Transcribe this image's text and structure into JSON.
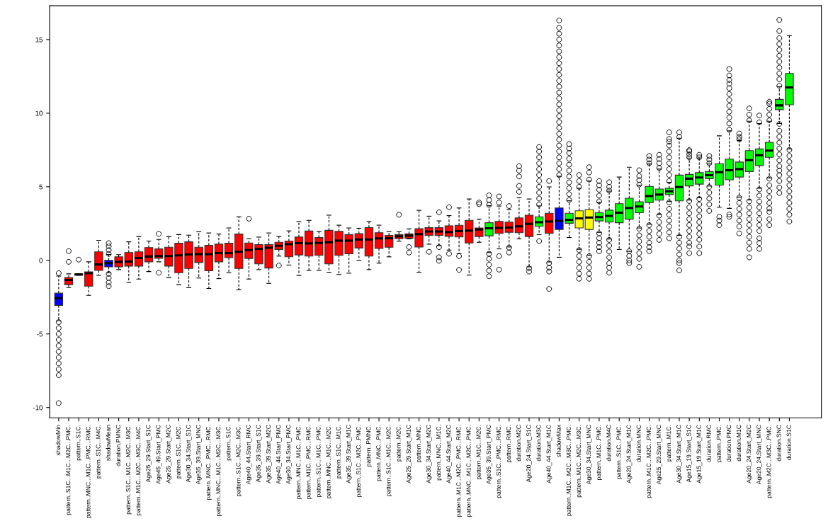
{
  "chart_data": {
    "type": "box",
    "categories": [
      "shadowMin",
      "pattern..S1C...M1C...M2C...PMC.",
      "pattern..S1C.",
      "pattern..MNC...M1C...PMC...RMC.",
      "pattern..S1C...M4C.",
      "shadowMean",
      "duration.PMNC",
      "pattern..S1C...M1C...M2C...M3C.",
      "pattern..M1C...M2C...M3C...M4C.",
      "Age25_29.Start_S1C",
      "Age45_49.Start_PMC",
      "Age25_29.Start_M2C",
      "pattern..S1C...M2C.",
      "Age30_34.Start_S1C",
      "Age35_39.Start_MNC",
      "pattern..MNC...PMC...RMC.",
      "pattern..MNC...M1C...M2C...M3C.",
      "pattern..S1C.",
      "pattern..S1C...M2C...M3C.",
      "Age40_44.Start_RMC",
      "Age35_39.Start_S1C",
      "Age35_39.Start_M2C",
      "Age40_44.Start_PMC",
      "Age30_34.Start_PMC",
      "pattern..MNC...M1C...PMC.",
      "pattern..M1C...PMC...RMC.",
      "pattern..S1C...M1C...PMC.",
      "pattern..MNC...M1C...M2C.",
      "pattern..S1C...M1C.",
      "Age35_39.Start_M1C",
      "pattern..S1C...M2C...PMC.",
      "pattern..PMNC.",
      "pattern..MNC...PMC.",
      "pattern..S1C...M1C...M2C.",
      "pattern..M2C.",
      "Age25_29.Start_M1C",
      "pattern..MNC.",
      "Age30_34.Start_M2C",
      "pattern..MNC...M1C.",
      "Age40_44.Start_M2C",
      "pattern..M1C...M2C...PMC...RMC.",
      "pattern..MNC...M1C...M2C...PMC.",
      "pattern..M1C...M2C.",
      "Age35_39.Start_PMC",
      "pattern..S1C...PMC...RMC.",
      "pattern..RMC.",
      "duration.M2C",
      "Age20_24.Start_S1C",
      "duration.M3C",
      "Age40_44.Start_M1C",
      "shadowMax",
      "pattern..M1C...M2C...M3C...PMC.",
      "pattern..M1C...M2C...M3C.",
      "Age30_34.Start_MNC",
      "pattern..M1C...PMC.",
      "duration.M4C",
      "pattern..S1C...PMC.",
      "Age20_24.Start_M1C",
      "duration.MNC",
      "pattern..M1C...M2C...PMC.",
      "Age25_29.Start_MNC",
      "pattern..M1C.",
      "Age30_34.Start_M1C",
      "Age15_19.Start_S1C",
      "Age15_19.Start_M1C",
      "duration.RMC",
      "pattern..PMC.",
      "duration.PMC",
      "duration.M1C",
      "Age20_24.Start_M2C",
      "Age20_24.Start_MNC",
      "pattern..M2C...M3C...PMC.",
      "duration.SNC",
      "duration.S1C"
    ],
    "boxes": [
      {
        "low": -4.1,
        "q1": -3.06,
        "median": -2.57,
        "q3": -2.23,
        "high": -1.07,
        "outliers": [
          -0.87,
          -4.2,
          -4.6,
          -5.0,
          -5.4,
          -5.8,
          -6.2,
          -6.6,
          -7.0,
          -7.4,
          -7.8,
          -9.7
        ]
      },
      {
        "low": -1.85,
        "q1": -1.65,
        "median": -1.33,
        "q3": -1.17,
        "high": -0.92,
        "outliers": [
          0.63,
          -0.1
        ]
      },
      {
        "low": -1.0,
        "q1": -1.0,
        "median": -0.96,
        "q3": -0.92,
        "high": -0.92,
        "outliers": [
          0.05
        ]
      },
      {
        "low": -2.38,
        "q1": -1.75,
        "median": -0.88,
        "q3": -0.78,
        "high": -0.1
      },
      {
        "low": -1.02,
        "q1": -0.68,
        "median": -0.28,
        "q3": 0.58,
        "high": 1.36
      },
      {
        "low": -0.85,
        "q1": -0.44,
        "median": -0.19,
        "q3": 0.0,
        "high": 0.4,
        "outliers": [
          0.44,
          0.7,
          0.95,
          1.17,
          -0.92,
          -1.2,
          -1.5,
          -1.75
        ]
      },
      {
        "low": -0.63,
        "q1": -0.44,
        "median": -0.1,
        "q3": 0.24,
        "high": 0.39
      },
      {
        "low": -1.5,
        "q1": -0.39,
        "median": -0.08,
        "q3": 0.53,
        "high": 1.26
      },
      {
        "low": -1.27,
        "q1": -0.39,
        "median": 0.16,
        "q3": 0.58,
        "high": 1.62
      },
      {
        "low": -0.76,
        "q1": -0.1,
        "median": 0.26,
        "q3": 0.87,
        "high": 1.31
      },
      {
        "low": -0.1,
        "q1": 0.14,
        "median": 0.29,
        "q3": 0.78,
        "high": 1.42,
        "outliers": [
          1.8,
          -0.84
        ]
      },
      {
        "low": -1.17,
        "q1": -0.39,
        "median": 0.29,
        "q3": 0.89,
        "high": 1.62
      },
      {
        "low": -1.65,
        "q1": -0.84,
        "median": 0.34,
        "q3": 1.16,
        "high": 1.75
      },
      {
        "low": -1.86,
        "q1": -0.55,
        "median": 0.4,
        "q3": 1.26,
        "high": 1.71
      },
      {
        "low": -1.2,
        "q1": -0.15,
        "median": 0.42,
        "q3": 0.89,
        "high": 1.94
      },
      {
        "low": -1.91,
        "q1": -0.71,
        "median": 0.42,
        "q3": 1.02,
        "high": 1.86
      },
      {
        "low": -1.24,
        "q1": -0.1,
        "median": 0.49,
        "q3": 1.1,
        "high": 1.79
      },
      {
        "low": -0.84,
        "q1": 0.18,
        "median": 0.49,
        "q3": 1.16,
        "high": 2.2
      },
      {
        "low": -2.0,
        "q1": -0.55,
        "median": 0.58,
        "q3": 1.79,
        "high": 2.96
      },
      {
        "low": -1.27,
        "q1": 0.13,
        "median": 0.7,
        "q3": 1.18,
        "high": 1.47,
        "outliers": [
          2.83
        ]
      },
      {
        "low": -0.63,
        "q1": -0.24,
        "median": 0.78,
        "q3": 1.07,
        "high": 1.58
      },
      {
        "low": -1.56,
        "q1": -0.52,
        "median": 0.86,
        "q3": 1.07,
        "high": 1.86
      },
      {
        "low": 0.29,
        "q1": 0.74,
        "median": 0.99,
        "q3": 1.23,
        "high": 1.63,
        "outliers": [
          -0.35
        ]
      },
      {
        "low": -0.32,
        "q1": 0.24,
        "median": 1.1,
        "q3": 1.31,
        "high": 2.0
      },
      {
        "low": -1.02,
        "q1": 0.37,
        "median": 1.17,
        "q3": 1.59,
        "high": 2.64
      },
      {
        "low": -0.68,
        "q1": 0.29,
        "median": 1.15,
        "q3": 1.99,
        "high": 2.72
      },
      {
        "low": -0.68,
        "q1": 0.34,
        "median": 1.18,
        "q3": 1.55,
        "high": 1.96
      },
      {
        "low": -0.81,
        "q1": -0.24,
        "median": 1.23,
        "q3": 2.04,
        "high": 3.07
      },
      {
        "low": -0.96,
        "q1": 0.34,
        "median": 1.34,
        "q3": 1.97,
        "high": 2.39
      },
      {
        "low": -0.87,
        "q1": 0.45,
        "median": 1.34,
        "q3": 1.75,
        "high": 2.2
      },
      {
        "low": 0.0,
        "q1": 0.84,
        "median": 1.42,
        "q3": 1.81,
        "high": 2.18
      },
      {
        "low": -0.63,
        "q1": 0.29,
        "median": 1.42,
        "q3": 2.23,
        "high": 2.64
      },
      {
        "low": -0.19,
        "q1": 0.81,
        "median": 1.49,
        "q3": 1.88,
        "high": 2.39
      },
      {
        "low": 0.24,
        "q1": 0.89,
        "median": 1.5,
        "q3": 1.7,
        "high": 1.96
      },
      {
        "low": 1.3,
        "q1": 1.47,
        "median": 1.63,
        "q3": 1.75,
        "high": 1.95,
        "outliers": [
          3.1
        ]
      },
      {
        "low": 1.46,
        "q1": 1.5,
        "median": 1.68,
        "q3": 1.8,
        "high": 2.14,
        "outliers": [
          0.91,
          0.53
        ]
      },
      {
        "low": -0.81,
        "q1": 0.91,
        "median": 1.78,
        "q3": 2.15,
        "high": 3.4
      },
      {
        "low": 1.1,
        "q1": 1.7,
        "median": 1.96,
        "q3": 2.22,
        "high": 3.0,
        "outliers": [
          0.58
        ]
      },
      {
        "low": 1.0,
        "q1": 1.7,
        "median": 1.96,
        "q3": 2.22,
        "high": 2.68,
        "outliers": [
          3.27,
          0.9,
          0.21,
          -0.03
        ]
      },
      {
        "low": 0.7,
        "q1": 1.63,
        "median": 1.92,
        "q3": 2.35,
        "high": 3.04,
        "outliers": [
          3.61,
          0.45
        ]
      },
      {
        "low": 0.45,
        "q1": 1.59,
        "median": 1.99,
        "q3": 2.38,
        "high": 3.56,
        "outliers": [
          0.29,
          -0.65
        ]
      },
      {
        "low": -1.0,
        "q1": 1.18,
        "median": 2.02,
        "q3": 2.72,
        "high": 4.17
      },
      {
        "low": 1.23,
        "q1": 1.62,
        "median": 2.1,
        "q3": 2.2,
        "high": 2.8,
        "outliers": [
          3.93,
          3.82
        ]
      },
      {
        "low": 0.53,
        "q1": 1.67,
        "median": 2.18,
        "q3": 2.56,
        "high": 3.72,
        "outliers": [
          3.77,
          4.1,
          4.42,
          0.45,
          0.1,
          -0.3,
          -0.7,
          -1.08
        ]
      },
      {
        "low": 0.78,
        "q1": 1.83,
        "median": 2.2,
        "q3": 2.64,
        "high": 3.69,
        "outliers": [
          3.93,
          4.34,
          0.29,
          -0.63
        ]
      },
      {
        "low": 0.91,
        "q1": 1.91,
        "median": 2.23,
        "q3": 2.6,
        "high": 3.45,
        "outliers": [
          3.69,
          0.87,
          0.53
        ]
      },
      {
        "low": 1.46,
        "q1": 1.88,
        "median": 2.31,
        "q3": 2.88,
        "high": 4.26,
        "outliers": [
          4.66,
          5.06,
          5.7,
          6.1,
          6.4
        ]
      },
      {
        "low": -0.44,
        "q1": 1.62,
        "median": 2.48,
        "q3": 3.07,
        "high": 4.17,
        "outliers": [
          -0.55,
          -0.76
        ]
      },
      {
        "low": 1.75,
        "q1": 2.31,
        "median": 2.59,
        "q3": 2.96,
        "high": 3.7,
        "outliers": [
          3.8,
          4.2,
          4.6,
          5.0,
          5.4,
          5.8,
          6.2,
          6.6,
          7.0,
          7.4,
          7.7,
          1.31
        ]
      },
      {
        "low": -0.11,
        "q1": 1.83,
        "median": 2.64,
        "q3": 3.2,
        "high": 4.99,
        "outliers": [
          5.39,
          -0.19,
          -0.5,
          -0.76,
          -1.94
        ]
      },
      {
        "low": 0.21,
        "q1": 2.1,
        "median": 2.68,
        "q3": 3.56,
        "high": 5.71,
        "outliers": [
          5.8,
          6.2,
          6.6,
          7.0,
          7.4,
          7.8,
          8.2,
          8.6,
          9.0,
          9.4,
          9.8,
          10.2,
          10.6,
          11.0,
          11.4,
          11.8,
          12.2,
          12.6,
          13.0,
          13.4,
          13.8,
          14.2,
          14.6,
          15.0,
          15.4,
          15.8,
          16.3
        ]
      },
      {
        "low": 1.55,
        "q1": 2.52,
        "median": 2.75,
        "q3": 3.2,
        "high": 4.05,
        "outliers": [
          4.1,
          4.5,
          4.9,
          5.3,
          5.7,
          6.1,
          6.5,
          6.9,
          7.3,
          7.6,
          7.9
        ]
      },
      {
        "low": 0.75,
        "q1": 2.2,
        "median": 2.85,
        "q3": 3.37,
        "high": 4.9,
        "outliers": [
          5.0,
          5.39,
          5.8,
          0.7,
          0.3,
          -0.1,
          -0.5,
          -0.9,
          -1.25
        ]
      },
      {
        "low": 0.35,
        "q1": 2.1,
        "median": 2.91,
        "q3": 3.45,
        "high": 5.4,
        "outliers": [
          5.49,
          5.97,
          6.33,
          0.29,
          -0.1,
          -0.5,
          -0.9,
          -1.25
        ]
      },
      {
        "low": 1.9,
        "q1": 2.68,
        "median": 2.94,
        "q3": 3.25,
        "high": 3.95,
        "outliers": [
          4.01,
          4.4,
          4.8,
          5.1,
          5.39,
          1.83,
          1.5,
          1.2,
          0.9,
          0.62
        ]
      },
      {
        "low": 1.45,
        "q1": 2.6,
        "median": 3.02,
        "q3": 3.41,
        "high": 4.7,
        "outliers": [
          4.74,
          5.0,
          5.31,
          1.39,
          1.0,
          0.6,
          0.2,
          -0.2,
          -0.5,
          -0.84
        ]
      },
      {
        "low": 0.74,
        "q1": 2.56,
        "median": 3.24,
        "q3": 3.85,
        "high": 5.66
      },
      {
        "low": 0.61,
        "q1": 2.8,
        "median": 3.56,
        "q3": 4.22,
        "high": 6.33,
        "outliers": [
          0.62,
          0.3,
          0.0,
          -0.19
        ]
      },
      {
        "low": 2.2,
        "q1": 3.24,
        "median": 3.66,
        "q3": 3.98,
        "high": 5.1,
        "outliers": [
          5.15,
          5.45,
          5.73,
          6.12,
          2.15,
          1.7,
          1.3,
          0.9,
          0.5,
          0.1,
          -0.44
        ]
      },
      {
        "low": 2.45,
        "q1": 3.93,
        "median": 4.37,
        "q3": 5.03,
        "high": 6.55,
        "outliers": [
          6.6,
          6.85,
          7.09,
          2.39,
          2.0,
          1.6,
          1.2,
          0.9,
          0.62
        ]
      },
      {
        "low": 3.1,
        "q1": 4.09,
        "median": 4.47,
        "q3": 4.85,
        "high": 6.2,
        "outliers": [
          6.28,
          6.6,
          6.89,
          7.17,
          3.04,
          2.6,
          2.2,
          1.8,
          1.39
        ]
      },
      {
        "low": 4.0,
        "q1": 4.47,
        "median": 4.69,
        "q3": 4.9,
        "high": 5.3,
        "outliers": [
          5.39,
          5.8,
          6.2,
          6.6,
          7.0,
          7.4,
          7.8,
          8.06,
          8.25,
          8.7,
          3.93,
          3.5,
          3.1,
          2.7,
          2.3,
          1.9,
          1.5
        ]
      },
      {
        "low": 1.7,
        "q1": 4.04,
        "median": 4.98,
        "q3": 5.79,
        "high": 8.3,
        "outliers": [
          8.38,
          8.7,
          1.6,
          1.2,
          0.8,
          0.4,
          0.0,
          -0.19,
          -0.68
        ]
      },
      {
        "low": 4.1,
        "q1": 5.06,
        "median": 5.55,
        "q3": 5.84,
        "high": 6.95,
        "outliers": [
          7.0,
          7.2,
          7.41,
          7.49,
          4.03,
          3.6,
          3.2,
          2.8,
          2.4,
          2.0,
          1.6,
          1.2,
          0.94,
          0.49
        ]
      },
      {
        "low": 4.25,
        "q1": 5.18,
        "median": 5.63,
        "q3": 5.96,
        "high": 6.95,
        "outliers": [
          7.0,
          7.17,
          4.17,
          3.8,
          3.4,
          3.0,
          2.6,
          2.2,
          1.8,
          1.4,
          0.94,
          0.49
        ]
      },
      {
        "low": 5.05,
        "q1": 5.55,
        "median": 5.79,
        "q3": 6.03,
        "high": 6.55,
        "outliers": [
          6.6,
          6.85,
          7.09,
          4.99,
          4.6,
          4.2,
          3.8,
          3.36
        ]
      },
      {
        "low": 3.61,
        "q1": 5.11,
        "median": 5.99,
        "q3": 6.57,
        "high": 8.46,
        "outliers": [
          2.96,
          2.7,
          2.39
        ]
      },
      {
        "low": 3.53,
        "q1": 5.47,
        "median": 6.12,
        "q3": 6.88,
        "high": 8.8,
        "outliers": [
          8.87,
          9.3,
          9.7,
          10.1,
          10.5,
          10.9,
          11.3,
          11.7,
          12.0,
          12.26,
          12.56,
          13.0,
          3.12,
          2.96
        ]
      },
      {
        "low": 4.3,
        "q1": 5.66,
        "median": 6.2,
        "q3": 6.68,
        "high": 8.15,
        "outliers": [
          8.22,
          8.4,
          8.62,
          4.26,
          3.9,
          3.5,
          3.1,
          2.7,
          2.3,
          1.83
        ]
      },
      {
        "low": 4.1,
        "q1": 6.03,
        "median": 6.81,
        "q3": 7.46,
        "high": 9.45,
        "outliers": [
          9.51,
          9.9,
          10.32,
          4.01,
          3.6,
          3.2,
          2.8,
          2.4,
          2.0,
          1.6,
          1.2,
          0.78,
          0.21
        ]
      },
      {
        "low": 4.9,
        "q1": 6.44,
        "median": 7.14,
        "q3": 7.57,
        "high": 9.3,
        "outliers": [
          9.38,
          9.84,
          4.82,
          4.4,
          4.0,
          3.6,
          3.2,
          2.8,
          2.4,
          2.0,
          1.5,
          1.18,
          0.78
        ]
      },
      {
        "low": 5.6,
        "q1": 7.0,
        "median": 7.46,
        "q3": 8.02,
        "high": 9.45,
        "outliers": [
          9.51,
          9.9,
          10.3,
          10.65,
          10.78,
          5.55,
          5.1,
          4.7,
          4.3,
          3.9,
          3.53,
          3.29,
          2.8,
          2.39
        ]
      },
      {
        "low": 9.3,
        "q1": 10.24,
        "median": 10.53,
        "q3": 10.94,
        "high": 11.8,
        "outliers": [
          11.86,
          12.3,
          12.7,
          13.1,
          13.5,
          13.9,
          14.3,
          14.7,
          15.1,
          15.58,
          16.34,
          9.27,
          8.8,
          8.4,
          8.0,
          7.6,
          7.2,
          6.8,
          6.4,
          6.1,
          5.79,
          5.39,
          4.95,
          4.58
        ]
      },
      {
        "low": 7.57,
        "q1": 10.57,
        "median": 11.75,
        "q3": 12.7,
        "high": 15.26,
        "outliers": [
          7.5,
          7.1,
          6.7,
          6.3,
          5.9,
          5.5,
          5.1,
          4.7,
          4.3,
          3.9,
          3.5,
          3.1,
          2.64
        ]
      }
    ],
    "colors": [
      "#0000ff",
      "#ff0000",
      "#ff0000",
      "#ff0000",
      "#ff0000",
      "#0000ff",
      "#ff0000",
      "#ff0000",
      "#ff0000",
      "#ff0000",
      "#ff0000",
      "#ff0000",
      "#ff0000",
      "#ff0000",
      "#ff0000",
      "#ff0000",
      "#ff0000",
      "#ff0000",
      "#ff0000",
      "#ff0000",
      "#ff0000",
      "#ff0000",
      "#ff0000",
      "#ff0000",
      "#ff0000",
      "#ff0000",
      "#ff0000",
      "#ff0000",
      "#ff0000",
      "#ff0000",
      "#ff0000",
      "#ff0000",
      "#ff0000",
      "#ff0000",
      "#ff0000",
      "#ff0000",
      "#ff0000",
      "#ff0000",
      "#ff0000",
      "#ff0000",
      "#ff0000",
      "#ff0000",
      "#ff0000",
      "#00ff00",
      "#ff0000",
      "#ff0000",
      "#ff0000",
      "#ff0000",
      "#00ff00",
      "#ff0000",
      "#0000ff",
      "#00ff00",
      "#ffff00",
      "#ffff00",
      "#00ff00",
      "#00ff00",
      "#00ff00",
      "#00ff00",
      "#00ff00",
      "#00ff00",
      "#00ff00",
      "#00ff00",
      "#00ff00",
      "#00ff00",
      "#00ff00",
      "#00ff00",
      "#00ff00",
      "#00ff00",
      "#00ff00",
      "#00ff00",
      "#00ff00",
      "#00ff00",
      "#00ff00",
      "#00ff00"
    ],
    "ylim": [
      -10.7,
      17.3
    ],
    "yticks": [
      -10,
      -5,
      0,
      5,
      10,
      15
    ]
  }
}
